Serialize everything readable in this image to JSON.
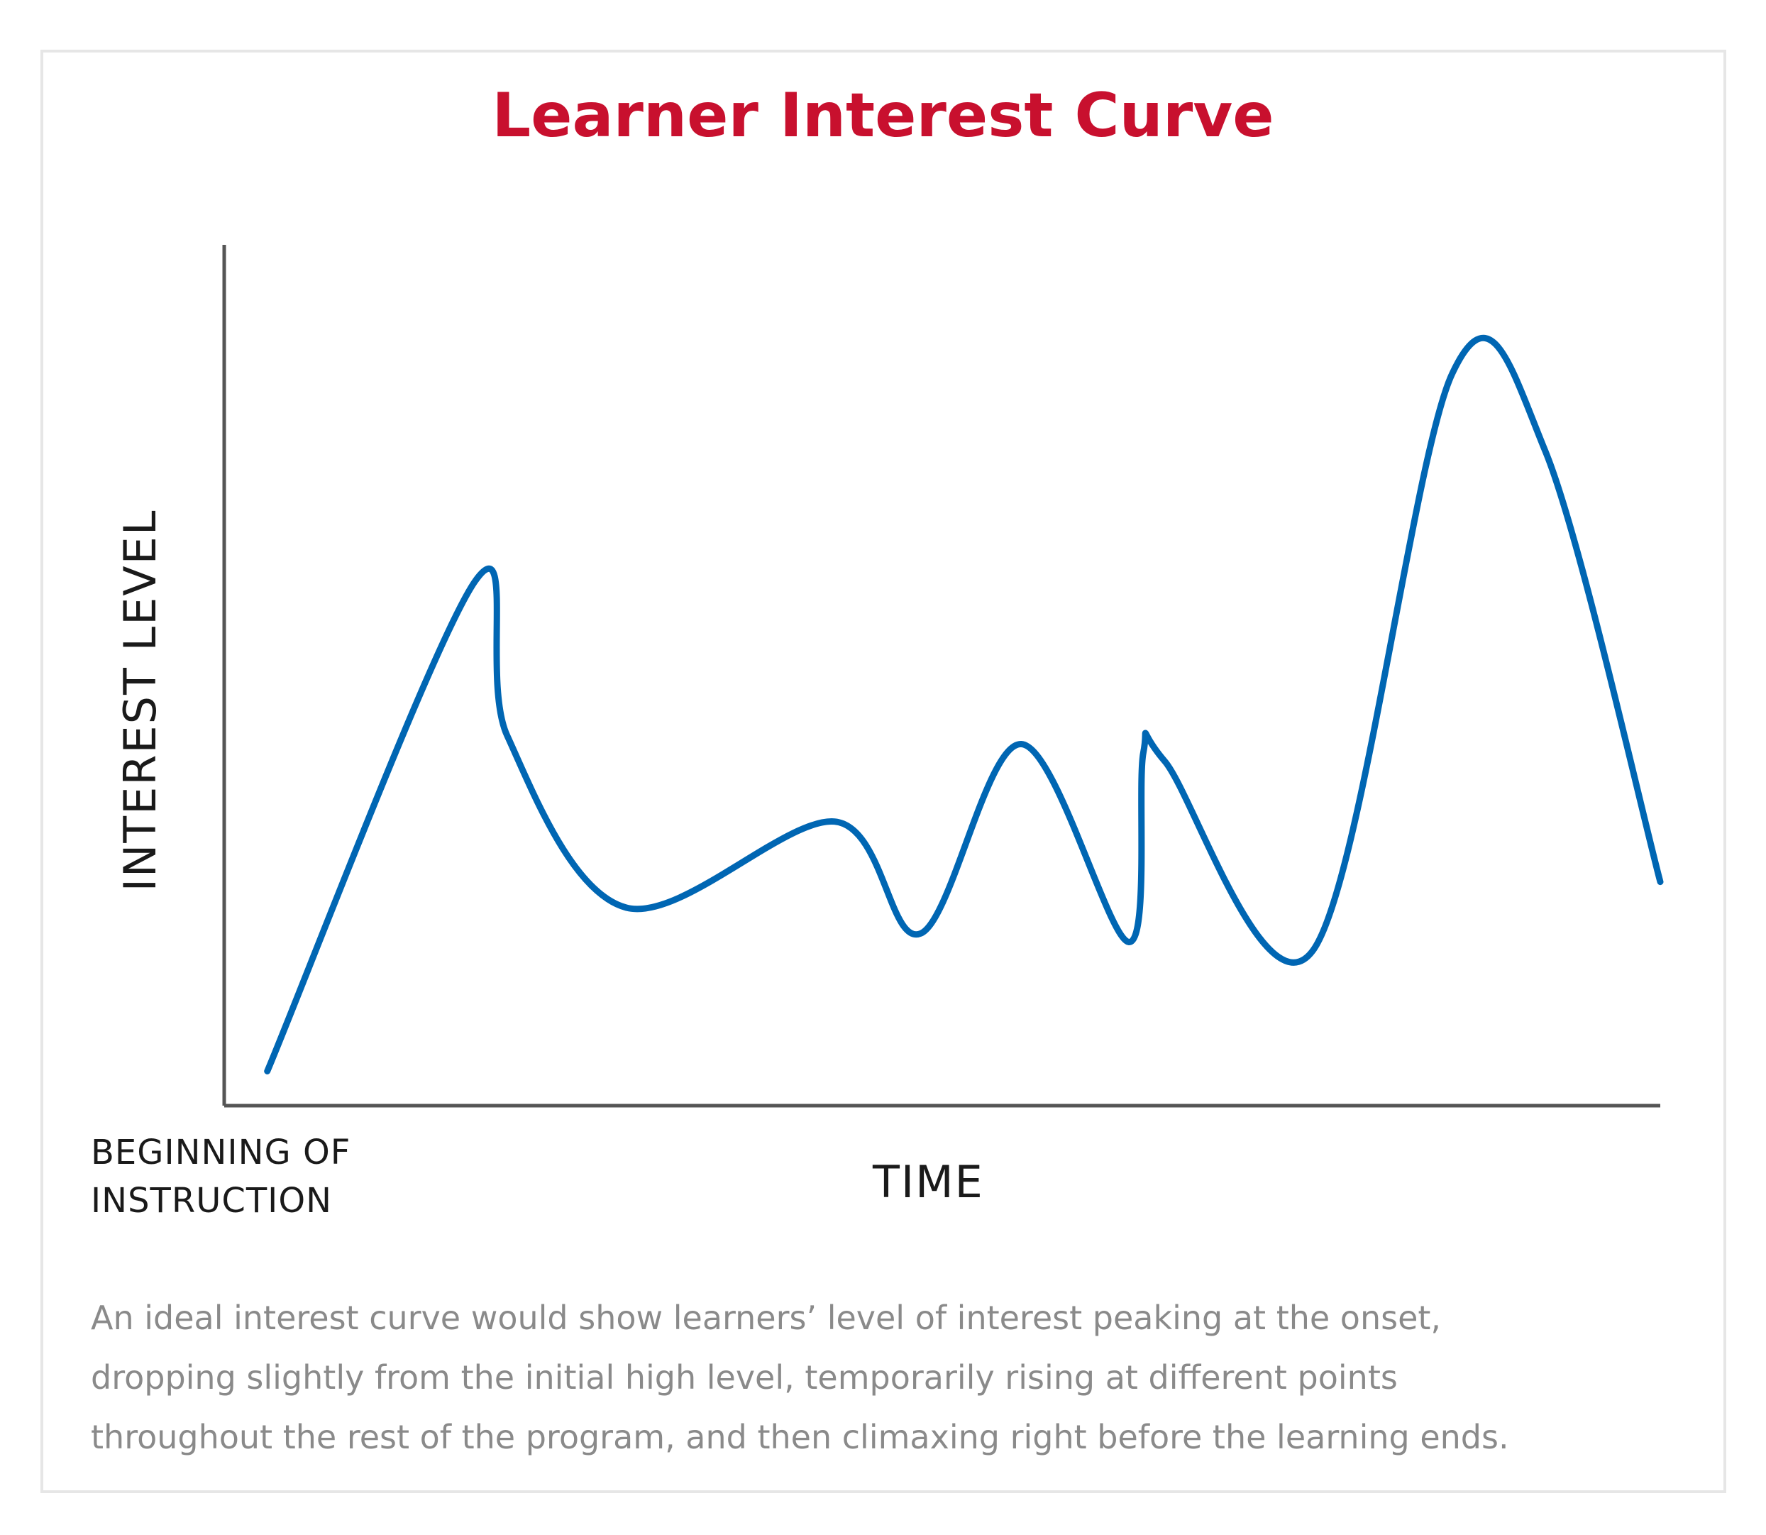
{
  "chart_data": {
    "type": "line",
    "title": "Learner Interest Curve",
    "xlabel": "TIME",
    "ylabel": "INTEREST LEVEL",
    "x_axis_start_label": [
      "BEGINNING OF",
      "INSTRUCTION"
    ],
    "xlim": [
      0,
      100
    ],
    "ylim": [
      0,
      100
    ],
    "tick_labels": false,
    "grid": false,
    "legend": "none",
    "series": [
      {
        "color": "#0066b3",
        "x": [
          3,
          17.5,
          19.7,
          28,
          42.5,
          48.5,
          55.5,
          63,
          64,
          65.5,
          75.8,
          85.5,
          92,
          100
        ],
        "y": [
          4,
          61,
          43,
          23,
          33,
          20,
          42,
          19,
          41,
          40,
          18,
          85,
          76,
          26
        ]
      }
    ]
  },
  "caption": [
    "An ideal interest curve would show learners’ level of interest peaking at the onset,",
    "dropping slightly from the initial high level, temporarily rising at different points",
    "throughout the rest of the program, and then climaxing right before the learning ends."
  ]
}
